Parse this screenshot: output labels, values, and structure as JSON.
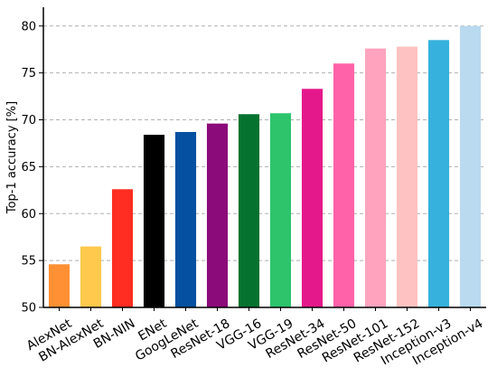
{
  "chart_data": {
    "type": "bar",
    "title": "",
    "xlabel": "",
    "ylabel": "Top-1 accuracy [%]",
    "ylim": [
      50,
      82
    ],
    "yticks": [
      50,
      55,
      60,
      65,
      70,
      75,
      80
    ],
    "grid": true,
    "categories": [
      "AlexNet",
      "BN-AlexNet",
      "BN-NIN",
      "ENet",
      "GoogLeNet",
      "ResNet-18",
      "VGG-16",
      "VGG-19",
      "ResNet-34",
      "ResNet-50",
      "ResNet-101",
      "ResNet-152",
      "Inception-v3",
      "Inception-v4"
    ],
    "values": [
      54.6,
      56.5,
      62.6,
      68.4,
      68.7,
      69.6,
      70.6,
      70.7,
      73.3,
      76.0,
      77.6,
      77.8,
      78.5,
      80.0
    ],
    "colors": [
      "#ff9033",
      "#ffc94d",
      "#ff2d22",
      "#000000",
      "#0550a0",
      "#8b0b7a",
      "#06722f",
      "#2ec46c",
      "#e5188b",
      "#ff62a8",
      "#ffa3bf",
      "#ffc2c2",
      "#36b1dd",
      "#b9daef"
    ]
  }
}
